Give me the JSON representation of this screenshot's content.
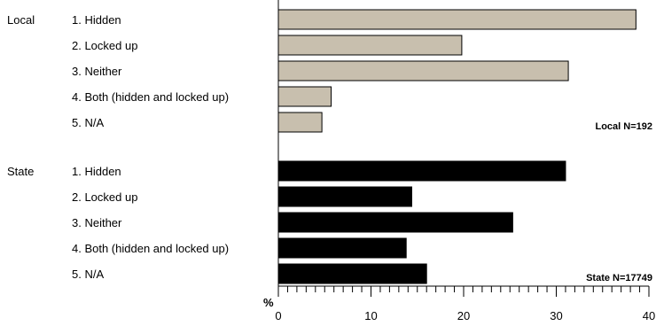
{
  "chart_data": {
    "type": "bar",
    "orientation": "horizontal",
    "title": "",
    "xlabel": "%",
    "ylabel": "",
    "xlim": [
      0,
      40
    ],
    "x_ticks": [
      0,
      10,
      20,
      30,
      40
    ],
    "grid": false,
    "legend": "none",
    "groups": [
      {
        "name": "Local",
        "n_label": "Local N=192",
        "color": "#c8bfae",
        "categories": [
          "1. Hidden",
          "2. Locked up",
          "3. Neither",
          "4. Both (hidden and locked up)",
          "5. N/A"
        ],
        "values": [
          38.6,
          19.8,
          31.3,
          5.7,
          4.7
        ]
      },
      {
        "name": "State",
        "n_label": "State N=17749",
        "color": "#000000",
        "categories": [
          "1. Hidden",
          "2. Locked up",
          "3. Neither",
          "4. Both (hidden and locked up)",
          "5. N/A"
        ],
        "values": [
          31.0,
          14.4,
          25.3,
          13.8,
          16.0
        ]
      }
    ]
  }
}
